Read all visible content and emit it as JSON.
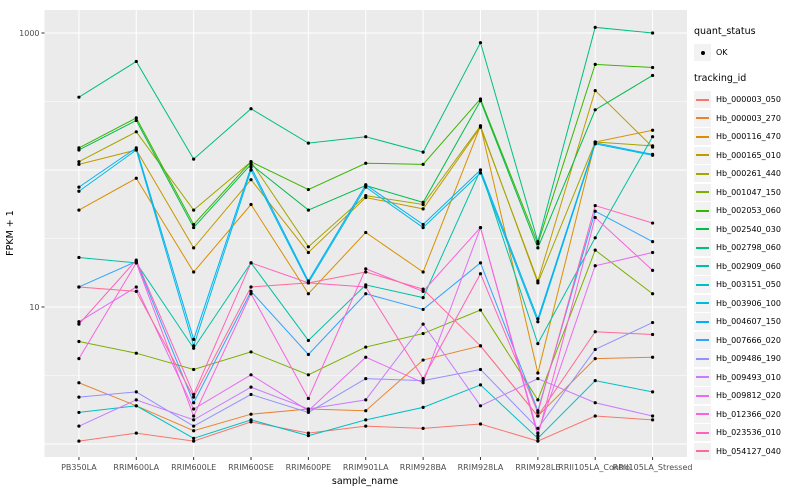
{
  "colors": {
    "panel_bg": "#EBEBEB",
    "grid": "#FFFFFF",
    "legend_key_bg": "#F2F2F2",
    "axis_tick_text": "#4D4D4D",
    "axis_title_text": "#000000",
    "point": "#000000"
  },
  "legend": {
    "quant_status_title": "quant_status",
    "quant_status_items": [
      {
        "label": "OK",
        "shape": "point",
        "color": "#000000"
      }
    ],
    "tracking_title": "tracking_id"
  },
  "figure": {
    "y_ticks": [
      {
        "label": "1000",
        "value": 1000
      },
      {
        "label": "10",
        "value": 10
      }
    ]
  },
  "chart_data": {
    "type": "line",
    "title": "",
    "xlabel": "sample_name",
    "ylabel": "FPKM + 1",
    "y_scale": "log10",
    "ylim": [
      1,
      1500
    ],
    "grid": true,
    "legend_position": "right",
    "y_major_gridlines": [
      1,
      10,
      100,
      1000
    ],
    "y_minor_gridlines": [
      3.162,
      31.62,
      316.2
    ],
    "x_categories": [
      "PB350LA",
      "RRIM600LA",
      "RRIM600LE",
      "RRIM600SE",
      "RRIM600PE",
      "RRIM901LA",
      "RRIM928BA",
      "RRIM928LA",
      "RRIM928LE",
      "RRII105LA_Control",
      "RRII105LA_Stressed"
    ],
    "series": [
      {
        "name": "Hb_000003_050",
        "color": "#F8766D",
        "values": [
          1.05,
          1.2,
          1.05,
          1.45,
          1.2,
          1.35,
          1.3,
          1.4,
          1.05,
          1.6,
          1.5
        ]
      },
      {
        "name": "Hb_000003_270",
        "color": "#EA8331",
        "values": [
          2.8,
          1.9,
          1.25,
          1.65,
          1.8,
          1.75,
          4.1,
          5.2,
          1.6,
          4.2,
          4.3
        ]
      },
      {
        "name": "Hb_000116_470",
        "color": "#D89000",
        "values": [
          51,
          87,
          18,
          56,
          12.5,
          35,
          18,
          210,
          3.3,
          160,
          195
        ]
      },
      {
        "name": "Hb_000165_010",
        "color": "#C09B00",
        "values": [
          110,
          140,
          27,
          85,
          25,
          63,
          52,
          205,
          15.5,
          380,
          147
        ]
      },
      {
        "name": "Hb_000261_440",
        "color": "#A3A500",
        "values": [
          115,
          190,
          51,
          115,
          27.5,
          65,
          56,
          210,
          15,
          160,
          150
        ]
      },
      {
        "name": "Hb_001047_150",
        "color": "#7CAE00",
        "values": [
          5.6,
          4.6,
          3.5,
          4.7,
          3.2,
          5.1,
          6.4,
          9.5,
          2.1,
          26,
          12.5
        ]
      },
      {
        "name": "Hb_002053_060",
        "color": "#39B600",
        "values": [
          145,
          240,
          40,
          115,
          72,
          112,
          110,
          330,
          29,
          590,
          560
        ]
      },
      {
        "name": "Hb_002540_030",
        "color": "#00BB4E",
        "values": [
          140,
          230,
          38,
          110,
          51,
          77,
          58,
          320,
          27,
          275,
          490
        ]
      },
      {
        "name": "Hb_002798_060",
        "color": "#00BF7D",
        "values": [
          340,
          620,
          120,
          280,
          157,
          175,
          135,
          850,
          30,
          1100,
          1000
        ]
      },
      {
        "name": "Hb_002909_060",
        "color": "#00C1A3",
        "values": [
          23,
          21,
          5.0,
          21,
          5.7,
          14.5,
          11.7,
          100,
          5.4,
          32,
          175
        ]
      },
      {
        "name": "Hb_003151_050",
        "color": "#00BFC4",
        "values": [
          1.7,
          1.9,
          1.1,
          1.5,
          1.15,
          1.5,
          1.85,
          2.7,
          1.1,
          2.9,
          2.4
        ]
      },
      {
        "name": "Hb_003906_100",
        "color": "#00BAE0",
        "values": [
          70,
          140,
          5.2,
          100,
          15,
          75,
          38,
          95,
          7.8,
          155,
          128
        ]
      },
      {
        "name": "Hb_004607_150",
        "color": "#00B0F6",
        "values": [
          75,
          145,
          5.8,
          105,
          15.5,
          78,
          40,
          100,
          8.2,
          158,
          130
        ]
      },
      {
        "name": "Hb_007666_020",
        "color": "#35A2FF",
        "values": [
          14,
          21.5,
          2.0,
          13,
          4.5,
          12.5,
          9.6,
          21,
          1.75,
          50,
          30
        ]
      },
      {
        "name": "Hb_009486_190",
        "color": "#9590FF",
        "values": [
          2.2,
          2.4,
          1.35,
          2.3,
          1.7,
          3.0,
          2.9,
          3.5,
          1.3,
          4.9,
          7.7
        ]
      },
      {
        "name": "Hb_009493_010",
        "color": "#C77CFF",
        "values": [
          1.35,
          2.1,
          1.5,
          2.6,
          1.8,
          2.1,
          7.5,
          1.9,
          3.0,
          2.0,
          1.6
        ]
      },
      {
        "name": "Hb_009812_020",
        "color": "#E76BF3",
        "values": [
          7.8,
          14,
          1.8,
          3.2,
          1.75,
          4.3,
          2.8,
          38,
          1.2,
          20,
          25
        ]
      },
      {
        "name": "Hb_012366_020",
        "color": "#FA62DB",
        "values": [
          4.2,
          21,
          1.6,
          12.5,
          2.15,
          19,
          13,
          38,
          1.15,
          45,
          18.5
        ]
      },
      {
        "name": "Hb_023536_010",
        "color": "#FF62BC",
        "values": [
          7.5,
          22,
          2.3,
          21,
          15,
          14,
          3.0,
          17.5,
          1.7,
          55,
          41
        ]
      },
      {
        "name": "Hb_054127_040",
        "color": "#FF6A98",
        "values": [
          14,
          13,
          2.2,
          14,
          15,
          18,
          13.5,
          5.2,
          1.6,
          6.6,
          6.3
        ]
      }
    ]
  }
}
